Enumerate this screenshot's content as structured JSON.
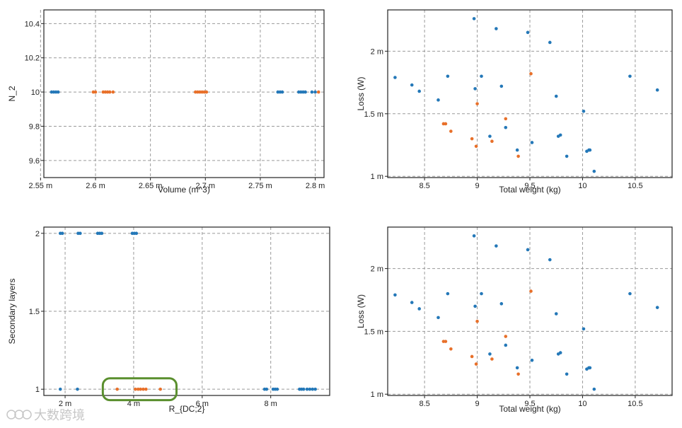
{
  "colors": {
    "blue": "#2478b8",
    "orange": "#e8702a",
    "grid": "#9a9a9a",
    "axis": "#222222",
    "highlight": "#5a8f2e"
  },
  "watermark": {
    "text": "大数跨境"
  },
  "chart_data": [
    {
      "id": "tl",
      "type": "scatter",
      "title": "",
      "xlabel": "Volume (m^3)",
      "ylabel": "N_2",
      "xlim": [
        2.553,
        2.808
      ],
      "ylim": [
        9.5,
        10.48
      ],
      "xticks": [
        2.55,
        2.6,
        2.65,
        2.7,
        2.75,
        2.8
      ],
      "xtick_labels": [
        "2.55 m",
        "2.6 m",
        "2.65 m",
        "2.7 m",
        "2.75 m",
        "2.8 m"
      ],
      "yticks": [
        9.6,
        9.8,
        10,
        10.2,
        10.4
      ],
      "ytick_labels": [
        "9.6",
        "9.8",
        "10",
        "10.2",
        "10.4"
      ],
      "series": [
        {
          "name": "blue",
          "color": "blue",
          "x": [
            2.56,
            2.562,
            2.564,
            2.566,
            2.766,
            2.768,
            2.77,
            2.785,
            2.787,
            2.789,
            2.791,
            2.797,
            2.8
          ],
          "y": [
            10,
            10,
            10,
            10,
            10,
            10,
            10,
            10,
            10,
            10,
            10,
            10,
            10
          ]
        },
        {
          "name": "orange",
          "color": "orange",
          "x": [
            2.598,
            2.6,
            2.607,
            2.609,
            2.611,
            2.613,
            2.616,
            2.691,
            2.693,
            2.695,
            2.697,
            2.699,
            2.701,
            2.803
          ],
          "y": [
            10,
            10,
            10,
            10,
            10,
            10,
            10,
            10,
            10,
            10,
            10,
            10,
            10,
            10
          ]
        }
      ]
    },
    {
      "id": "tr",
      "type": "scatter",
      "title": "",
      "xlabel": "Total weight (kg)",
      "ylabel": "Loss (W)",
      "xlim": [
        8.15,
        10.85
      ],
      "ylim": [
        0.99,
        2.33
      ],
      "xticks": [
        8.5,
        9,
        9.5,
        10,
        10.5
      ],
      "xtick_labels": [
        "8.5",
        "9",
        "9.5",
        "10",
        "10.5"
      ],
      "yticks": [
        1.0,
        1.5,
        2.0
      ],
      "ytick_labels": [
        "1 m",
        "1.5 m",
        "2 m"
      ],
      "series": [
        {
          "name": "blue",
          "color": "blue",
          "x": [
            8.97,
            9.18,
            9.48,
            9.69,
            8.22,
            8.72,
            9.04,
            8.38,
            8.45,
            9.23,
            8.98,
            8.63,
            9.75,
            10.01,
            10.45,
            10.71,
            9.27,
            9.12,
            9.77,
            9.79,
            9.52,
            9.38,
            10.04,
            10.06,
            10.07,
            9.85,
            10.11
          ],
          "y": [
            2.26,
            2.18,
            2.15,
            2.07,
            1.79,
            1.8,
            1.8,
            1.73,
            1.68,
            1.72,
            1.7,
            1.61,
            1.64,
            1.52,
            1.8,
            1.69,
            1.39,
            1.32,
            1.32,
            1.33,
            1.27,
            1.21,
            1.2,
            1.21,
            1.21,
            1.16,
            1.04
          ]
        },
        {
          "name": "orange",
          "color": "orange",
          "x": [
            9.51,
            9.0,
            9.27,
            8.68,
            8.7,
            8.75,
            8.95,
            9.14,
            8.99,
            9.39
          ],
          "y": [
            1.82,
            1.58,
            1.46,
            1.42,
            1.42,
            1.36,
            1.3,
            1.28,
            1.24,
            1.16
          ]
        }
      ]
    },
    {
      "id": "bl",
      "type": "scatter",
      "title": "",
      "xlabel": "R_{DC;2}",
      "ylabel": "Secondary layers",
      "xlim": [
        1.38,
        9.72
      ],
      "ylim": [
        0.96,
        2.04
      ],
      "xticks": [
        2,
        4,
        6,
        8
      ],
      "xtick_labels": [
        "2 m",
        "4 m",
        "6 m",
        "8 m"
      ],
      "yticks": [
        1,
        1.5,
        2
      ],
      "ytick_labels": [
        "1",
        "1.5",
        "2"
      ],
      "series": [
        {
          "name": "blue",
          "color": "blue",
          "x": [
            1.86,
            1.92,
            2.38,
            2.44,
            2.95,
            3.01,
            3.07,
            3.96,
            4.02,
            4.08,
            1.86,
            2.36,
            7.82,
            7.88,
            8.07,
            8.13,
            8.19,
            8.84,
            8.9,
            8.96,
            9.06,
            9.14,
            9.22,
            9.3
          ],
          "y": [
            2,
            2,
            2,
            2,
            2,
            2,
            2,
            2,
            2,
            2,
            1,
            1,
            1,
            1,
            1,
            1,
            1,
            1,
            1,
            1,
            1,
            1,
            1,
            1
          ]
        },
        {
          "name": "orange",
          "color": "orange",
          "x": [
            3.52,
            4.05,
            4.13,
            4.2,
            4.28,
            4.36,
            4.78
          ],
          "y": [
            1,
            1,
            1,
            1,
            1,
            1,
            1
          ]
        }
      ]
    },
    {
      "id": "br",
      "type": "scatter",
      "title": "",
      "xlabel": "Total weight (kg)",
      "ylabel": "Loss (W)",
      "xlim": [
        8.15,
        10.85
      ],
      "ylim": [
        0.99,
        2.33
      ],
      "xticks": [
        8.5,
        9,
        9.5,
        10,
        10.5
      ],
      "xtick_labels": [
        "8.5",
        "9",
        "9.5",
        "10",
        "10.5"
      ],
      "yticks": [
        1.0,
        1.5,
        2.0
      ],
      "ytick_labels": [
        "1 m",
        "1.5 m",
        "2 m"
      ],
      "series": [
        {
          "name": "blue",
          "color": "blue",
          "x": [
            8.97,
            9.18,
            9.48,
            9.69,
            8.22,
            8.72,
            9.04,
            8.38,
            8.45,
            9.23,
            8.98,
            8.63,
            9.75,
            10.01,
            10.45,
            10.71,
            9.27,
            9.12,
            9.77,
            9.79,
            9.52,
            9.38,
            10.04,
            10.06,
            10.07,
            9.85,
            10.11
          ],
          "y": [
            2.26,
            2.18,
            2.15,
            2.07,
            1.79,
            1.8,
            1.8,
            1.73,
            1.68,
            1.72,
            1.7,
            1.61,
            1.64,
            1.52,
            1.8,
            1.69,
            1.39,
            1.32,
            1.32,
            1.33,
            1.27,
            1.21,
            1.2,
            1.21,
            1.21,
            1.16,
            1.04
          ]
        },
        {
          "name": "orange",
          "color": "orange",
          "x": [
            9.51,
            9.0,
            9.27,
            8.68,
            8.7,
            8.75,
            8.95,
            9.14,
            8.99,
            9.39
          ],
          "y": [
            1.82,
            1.58,
            1.46,
            1.42,
            1.42,
            1.36,
            1.3,
            1.28,
            1.24,
            1.16
          ]
        }
      ]
    }
  ],
  "highlight": {
    "chart": "bl",
    "x_range": [
      3.1,
      5.25
    ],
    "y_range": [
      0.93,
      1.07
    ]
  }
}
